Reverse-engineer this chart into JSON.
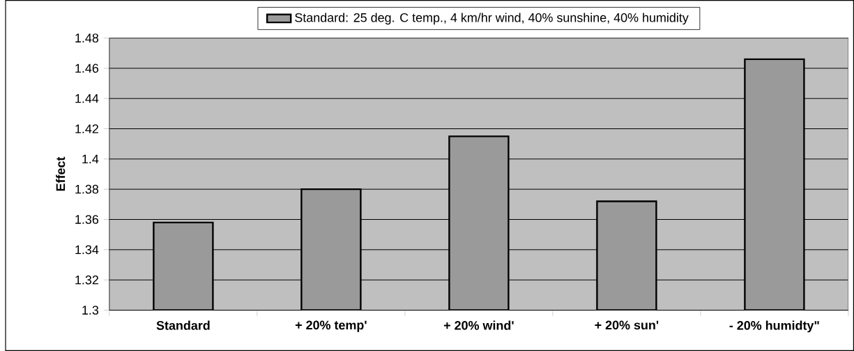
{
  "chart_data": {
    "type": "bar",
    "ylabel": "Effect",
    "categories": [
      "Standard",
      "+ 20% temp'",
      "+ 20% wind'",
      "+ 20% sun'",
      "- 20% humidty\""
    ],
    "series": [
      {
        "name": "Standard: 25 deg. C temp., 4 km/hr wind, 40% sunshine, 40% humidity",
        "color": "#9a9a9a",
        "values": [
          1.358,
          1.38,
          1.415,
          1.372,
          1.466
        ]
      }
    ],
    "ylim": [
      1.3,
      1.48
    ],
    "yticks": [
      1.3,
      1.32,
      1.34,
      1.36,
      1.38,
      1.4,
      1.42,
      1.44,
      1.46,
      1.48
    ],
    "grid": "y",
    "legend": "top"
  }
}
